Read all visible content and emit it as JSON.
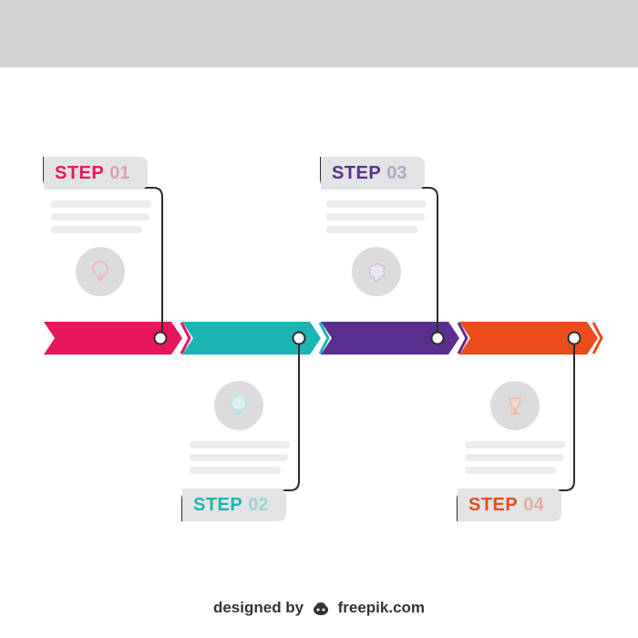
{
  "steps": [
    {
      "word": "STEP",
      "num": "01",
      "color": "#e8155f",
      "icon": "lightbulb-icon"
    },
    {
      "word": "STEP",
      "num": "02",
      "color": "#1bb5b3",
      "icon": "lightbulb-icon"
    },
    {
      "word": "STEP",
      "num": "03",
      "color": "#5a2e8f",
      "icon": "brain-icon"
    },
    {
      "word": "STEP",
      "num": "04",
      "color": "#ea4c1c",
      "icon": "trophy-icon"
    }
  ],
  "colors": {
    "top_bar": "#d2d3d5",
    "connector": "#2b2b2b",
    "tag_bg": "#e2e3e5",
    "icon_bg": "#dcdcde"
  },
  "footer": {
    "designed_by": "designed by",
    "brand": "freepik.com"
  }
}
